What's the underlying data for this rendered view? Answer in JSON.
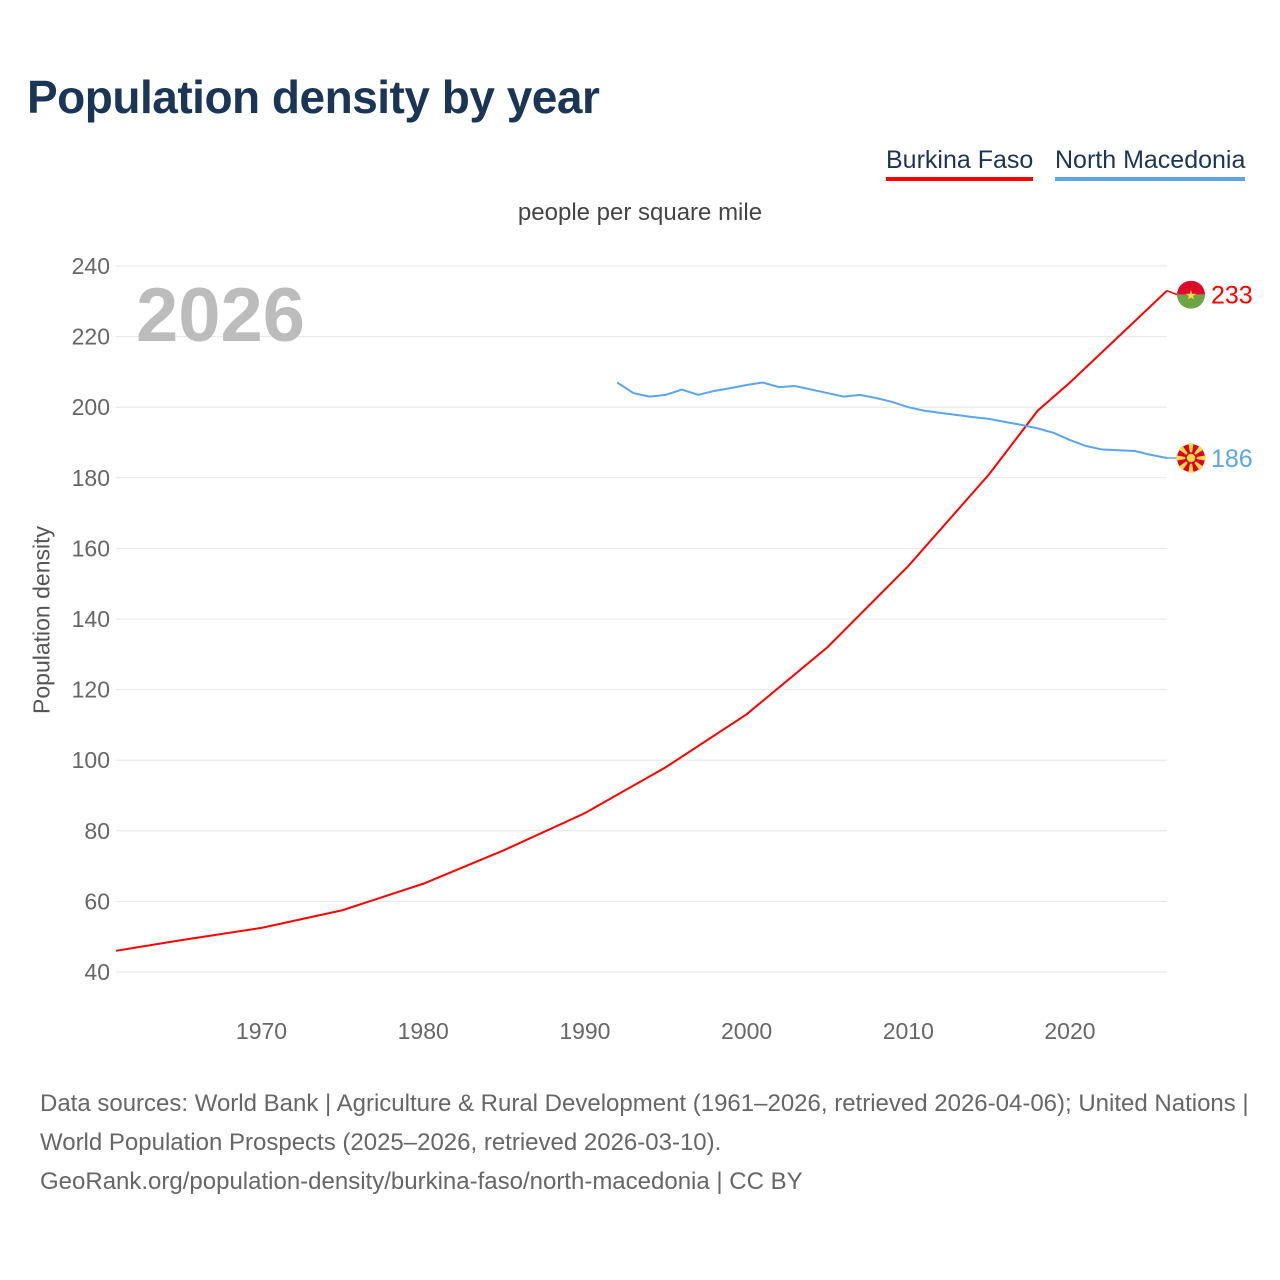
{
  "title": "Population density by year",
  "legend": [
    {
      "label": "Burkina Faso",
      "color": "#ff0000"
    },
    {
      "label": "North Macedonia",
      "color": "#5da5ea"
    }
  ],
  "current_year": "2026",
  "footer": {
    "sources": "Data sources: World Bank | Agriculture & Rural Development (1961–2026, retrieved 2026-04-06); United Nations | World Population Prospects (2025–2026, retrieved 2026-03-10).",
    "attribution": "GeoRank.org/population-density/burkina-faso/north-macedonia | CC BY"
  },
  "chart_data": {
    "type": "line",
    "title": "Population density by year",
    "subtitle": "people per square mile",
    "xlabel": "",
    "ylabel": "Population density",
    "xlim": [
      1961,
      2026
    ],
    "ylim": [
      40,
      240
    ],
    "xticks": [
      1970,
      1980,
      1990,
      2000,
      2010,
      2020
    ],
    "yticks": [
      40,
      60,
      80,
      100,
      120,
      140,
      160,
      180,
      200,
      220,
      240
    ],
    "grid": true,
    "legend_position": "top-right",
    "series": [
      {
        "name": "Burkina Faso",
        "color": "#ff0000",
        "end_label": "233",
        "flag": "burkina-faso",
        "x": [
          1961,
          1965,
          1970,
          1975,
          1980,
          1985,
          1990,
          1995,
          2000,
          2005,
          2010,
          2015,
          2018,
          2020,
          2023,
          2026
        ],
        "y": [
          46,
          49,
          52.5,
          57.5,
          65,
          74.5,
          85,
          98,
          113,
          132,
          155,
          181,
          199,
          207,
          220,
          233
        ]
      },
      {
        "name": "North Macedonia",
        "color": "#5da5ea",
        "end_label": "186",
        "flag": "north-macedonia",
        "x": [
          1992,
          1993,
          1994,
          1995,
          1996,
          1997,
          1998,
          1999,
          2000,
          2001,
          2002,
          2003,
          2004,
          2005,
          2006,
          2007,
          2008,
          2009,
          2010,
          2011,
          2012,
          2013,
          2014,
          2015,
          2016,
          2017,
          2018,
          2019,
          2020,
          2021,
          2022,
          2023,
          2024,
          2025,
          2026
        ],
        "y": [
          207,
          204,
          203,
          203.5,
          205,
          203.5,
          204.6,
          205.4,
          206.3,
          207,
          205.7,
          206,
          205,
          204,
          203,
          203.5,
          202.6,
          201.5,
          200,
          199,
          198.4,
          197.8,
          197.2,
          196.7,
          195.8,
          195,
          194,
          192.7,
          190.7,
          189,
          188,
          187.8,
          187.6,
          186.5,
          185.6
        ]
      }
    ]
  }
}
